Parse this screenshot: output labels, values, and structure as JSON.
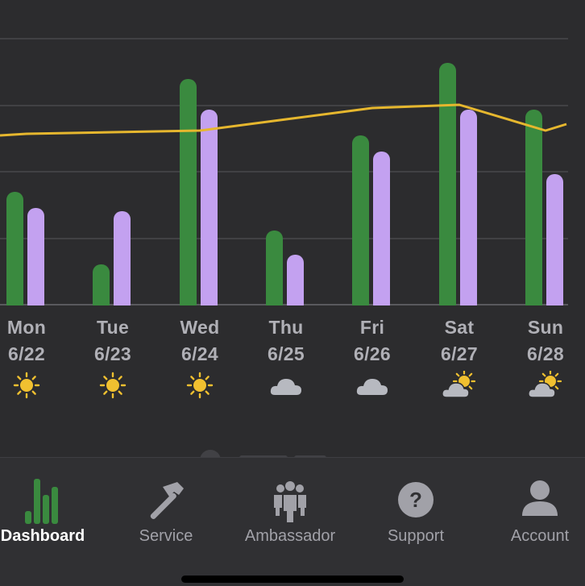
{
  "chart_data": {
    "type": "bar",
    "categories": [
      "Mon 6/22",
      "Tue 6/23",
      "Wed 6/24",
      "Thu 6/25",
      "Fri 6/26",
      "Sat 6/27",
      "Sun 6/28"
    ],
    "series": [
      {
        "values": [
          70,
          25,
          140,
          46,
          105,
          150,
          121
        ],
        "color": "#3a8a3f"
      },
      {
        "values": [
          60,
          58,
          121,
          31,
          95,
          121,
          81
        ],
        "color": "#c3a1f0"
      }
    ],
    "line": {
      "values": [
        106,
        107,
        108,
        115,
        122,
        124,
        108
      ],
      "color": "#e6b72e"
    },
    "ylim": [
      0,
      165
    ],
    "grid": true
  },
  "days": [
    {
      "name": "Mon",
      "date": "6/22",
      "weather": "sun-icon"
    },
    {
      "name": "Tue",
      "date": "6/23",
      "weather": "sun-icon"
    },
    {
      "name": "Wed",
      "date": "6/24",
      "weather": "sun-icon"
    },
    {
      "name": "Thu",
      "date": "6/25",
      "weather": "cloud-icon"
    },
    {
      "name": "Fri",
      "date": "6/26",
      "weather": "cloud-icon"
    },
    {
      "name": "Sat",
      "date": "6/27",
      "weather": "partly-sunny-icon"
    },
    {
      "name": "Sun",
      "date": "6/28",
      "weather": "partly-sunny-icon"
    }
  ],
  "tabs": [
    {
      "label": "Dashboard",
      "icon": "bar-chart-icon",
      "active": true
    },
    {
      "label": "Service",
      "icon": "hammer-icon",
      "active": false
    },
    {
      "label": "Ambassador",
      "icon": "group-icon",
      "active": false
    },
    {
      "label": "Support",
      "icon": "question-icon",
      "active": false
    },
    {
      "label": "Account",
      "icon": "person-icon",
      "active": false
    }
  ],
  "colors": {
    "sun": "#f0c030",
    "cloud": "#b7b9c0",
    "active_tab": "#3a8a3f",
    "inactive_tab": "#a1a1a8"
  }
}
